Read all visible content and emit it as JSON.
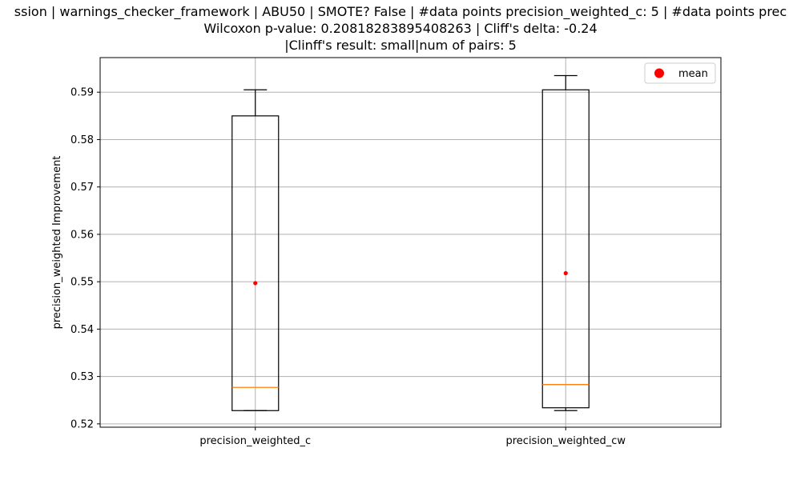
{
  "chart_data": {
    "type": "box",
    "title_lines": [
      "ssion | warnings_checker_framework | ABU50 | SMOTE? False | #data points precision_weighted_c: 5 | #data points prec",
      "Wilcoxon p-value: 0.20818283895408263 | Cliff's delta: -0.24",
      "|Clinff's result: small|num of pairs: 5"
    ],
    "ylabel": "precision_weighted Improvement",
    "xlabel": "",
    "ylim": [
      0.5193,
      0.5973
    ],
    "yticks": [
      "0.52",
      "0.53",
      "0.54",
      "0.55",
      "0.56",
      "0.57",
      "0.58",
      "0.59"
    ],
    "grid": true,
    "legend": {
      "label": "mean",
      "placement": "top-right",
      "color": "#ff0000"
    },
    "categories": [
      "precision_weighted_c",
      "precision_weighted_cw"
    ],
    "boxes": [
      {
        "category": "precision_weighted_c",
        "whisker_low": 0.5228,
        "q1": 0.5228,
        "median": 0.5277,
        "q3": 0.585,
        "whisker_high": 0.5905,
        "mean": 0.5497
      },
      {
        "category": "precision_weighted_cw",
        "whisker_low": 0.5228,
        "q1": 0.5234,
        "median": 0.5283,
        "q3": 0.5905,
        "whisker_high": 0.5935,
        "mean": 0.5518
      }
    ],
    "colors": {
      "box": "#000000",
      "median": "#ff7f0e",
      "mean": "#ff0000",
      "grid": "#b0b0b0"
    }
  }
}
